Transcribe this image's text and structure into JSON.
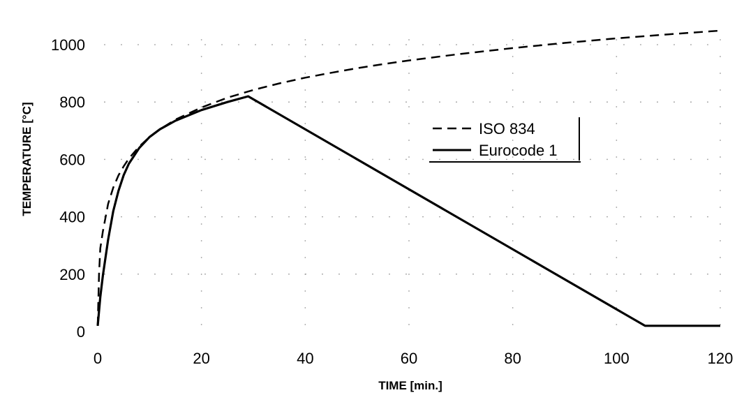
{
  "chart_data": {
    "type": "line",
    "xlabel": "TIME [min.]",
    "ylabel": "TEMPERATURE [°C]",
    "xlim": [
      0,
      120
    ],
    "ylim": [
      0,
      1050
    ],
    "xticks": [
      0,
      20,
      40,
      60,
      80,
      100,
      120
    ],
    "yticks": [
      0,
      200,
      400,
      600,
      800,
      1000
    ],
    "grid": "dotted",
    "legend_position": "center-right",
    "series": [
      {
        "name": "ISO 834",
        "style": "dashed",
        "color": "#000000",
        "x": [
          0,
          0.25,
          0.5,
          1,
          2,
          3,
          4,
          5,
          6,
          8,
          10,
          12,
          15,
          20,
          25,
          30,
          35,
          40,
          45,
          50,
          55,
          60,
          70,
          80,
          90,
          100,
          110,
          120
        ],
        "y": [
          20,
          200,
          290,
          349,
          445,
          502,
          544,
          576,
          603,
          645,
          678,
          705,
          739,
          781,
          815,
          842,
          865,
          885,
          902,
          918,
          932,
          945,
          968,
          988,
          1006,
          1022,
          1036,
          1049
        ]
      },
      {
        "name": "Eurocode 1",
        "style": "solid",
        "color": "#000000",
        "x": [
          0,
          0.5,
          1,
          2,
          3,
          4,
          5,
          6,
          8,
          10,
          12,
          15,
          20,
          25,
          29,
          105.5,
          120
        ],
        "y": [
          20,
          120,
          195,
          320,
          420,
          490,
          545,
          585,
          640,
          678,
          705,
          735,
          772,
          800,
          820,
          20,
          20
        ]
      }
    ]
  }
}
